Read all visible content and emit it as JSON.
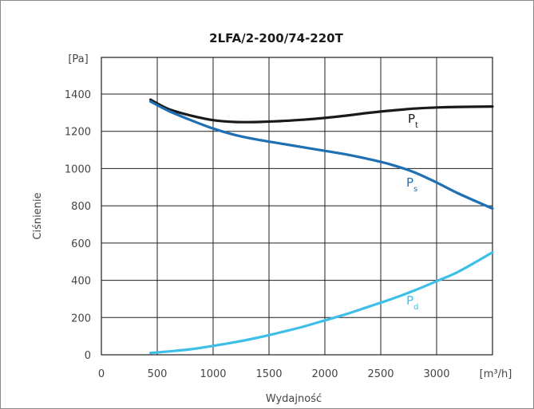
{
  "chart_data": {
    "type": "line",
    "title": "2LFA/2-200/74-220T",
    "xlabel": "Wydajność",
    "ylabel": "Ciśnienie",
    "x_unit_label": "[m³/h]",
    "y_unit_label": "[Pa]",
    "xlim": [
      0,
      3500
    ],
    "ylim": [
      0,
      1400
    ],
    "x_ticks": [
      0,
      500,
      1000,
      1500,
      2000,
      2500,
      3000
    ],
    "y_ticks": [
      0,
      200,
      400,
      600,
      800,
      1000,
      1200,
      1400
    ],
    "grid": true,
    "series": [
      {
        "name": "Pt",
        "name_main": "P",
        "name_sub": "t",
        "color": "#1a1a1a",
        "x": [
          440,
          600,
          800,
          1000,
          1200,
          1400,
          1600,
          1800,
          2000,
          2200,
          2400,
          2600,
          2800,
          3000,
          3200,
          3500
        ],
        "y": [
          1370,
          1320,
          1285,
          1260,
          1250,
          1250,
          1255,
          1262,
          1272,
          1285,
          1300,
          1312,
          1322,
          1328,
          1331,
          1333
        ]
      },
      {
        "name": "Ps",
        "name_main": "P",
        "name_sub": "s",
        "color": "#1f6fb5",
        "x": [
          440,
          600,
          800,
          1000,
          1200,
          1400,
          1600,
          1800,
          2000,
          2200,
          2400,
          2600,
          2800,
          3000,
          3200,
          3500
        ],
        "y": [
          1360,
          1310,
          1260,
          1215,
          1180,
          1155,
          1135,
          1115,
          1095,
          1075,
          1050,
          1020,
          980,
          925,
          865,
          785
        ]
      },
      {
        "name": "Pd",
        "name_main": "P",
        "name_sub": "d",
        "color": "#3dbfe8",
        "x": [
          440,
          600,
          800,
          1000,
          1200,
          1400,
          1600,
          1800,
          2000,
          2200,
          2400,
          2600,
          2800,
          3000,
          3200,
          3500
        ],
        "y": [
          10,
          18,
          30,
          48,
          68,
          92,
          120,
          150,
          185,
          220,
          260,
          300,
          345,
          395,
          448,
          550
        ]
      }
    ]
  }
}
